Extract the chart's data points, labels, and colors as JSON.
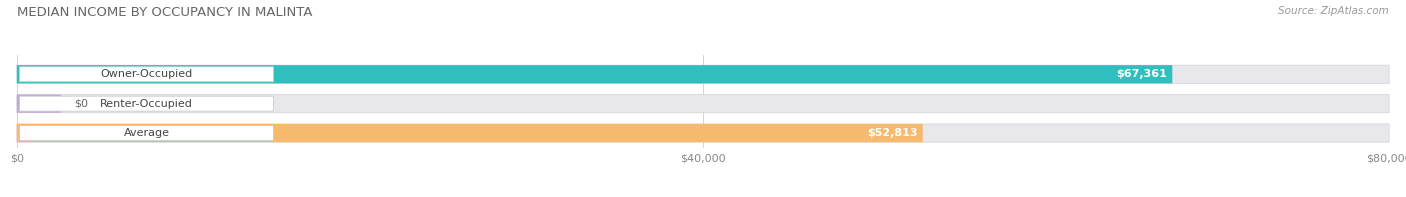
{
  "title": "MEDIAN INCOME BY OCCUPANCY IN MALINTA",
  "source": "Source: ZipAtlas.com",
  "categories": [
    "Owner-Occupied",
    "Renter-Occupied",
    "Average"
  ],
  "values": [
    67361,
    0,
    52813
  ],
  "labels": [
    "$67,361",
    "$0",
    "$52,813"
  ],
  "bar_colors": [
    "#30bfbf",
    "#c4a8d4",
    "#f5ba6e"
  ],
  "bar_bg_color": "#e8e8ec",
  "xlim": [
    0,
    80000
  ],
  "xticks": [
    0,
    40000,
    80000
  ],
  "xticklabels": [
    "$0",
    "$40,000",
    "$80,000"
  ],
  "figsize": [
    14.06,
    1.97
  ],
  "dpi": 100
}
